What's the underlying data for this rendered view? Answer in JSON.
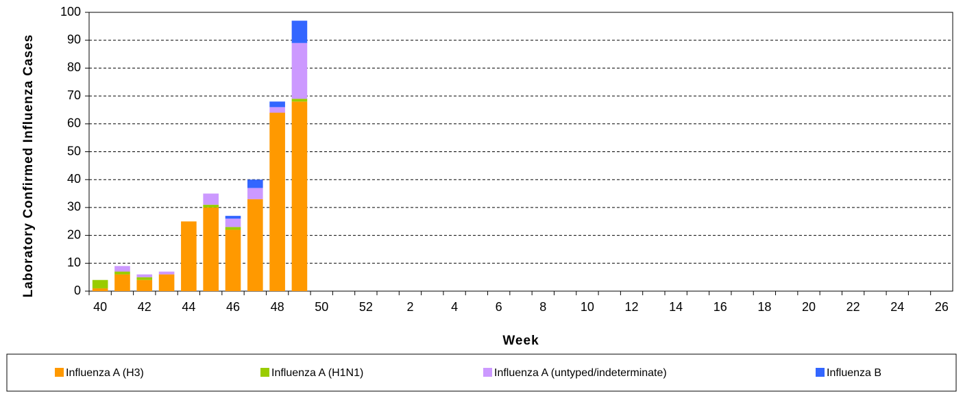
{
  "chart_data": {
    "type": "stacked_bar",
    "xlabel": "Week",
    "ylabel": "Laboratory Confirmed Influenza Cases",
    "categories": [
      "40",
      null,
      "42",
      null,
      "44",
      null,
      "46",
      null,
      "48",
      null,
      "50",
      null,
      "52",
      null,
      "2",
      null,
      "4",
      null,
      "6",
      null,
      "8",
      null,
      "10",
      null,
      "12",
      null,
      "14",
      null,
      "16",
      null,
      "18",
      null,
      "20",
      null,
      "22",
      null,
      "24",
      null,
      "26"
    ],
    "series": [
      {
        "name": "Influenza A (H3)",
        "color": "#ff9900",
        "values": [
          1,
          6,
          4,
          6,
          25,
          30,
          22,
          33,
          64,
          68,
          null,
          null,
          null,
          null,
          null,
          null,
          null,
          null,
          null,
          null,
          null,
          null,
          null,
          null,
          null,
          null,
          null,
          null,
          null,
          null,
          null,
          null,
          null,
          null,
          null,
          null,
          null,
          null,
          null
        ]
      },
      {
        "name": "Influenza A (H1N1)",
        "color": "#99cc00",
        "values": [
          3,
          1,
          1,
          0,
          0,
          1,
          1,
          0,
          0,
          1,
          null,
          null,
          null,
          null,
          null,
          null,
          null,
          null,
          null,
          null,
          null,
          null,
          null,
          null,
          null,
          null,
          null,
          null,
          null,
          null,
          null,
          null,
          null,
          null,
          null,
          null,
          null,
          null,
          null
        ]
      },
      {
        "name": "Influenza A (untyped/indeterminate)",
        "color": "#cc99ff",
        "values": [
          0,
          2,
          1,
          1,
          0,
          4,
          3,
          4,
          2,
          20,
          null,
          null,
          null,
          null,
          null,
          null,
          null,
          null,
          null,
          null,
          null,
          null,
          null,
          null,
          null,
          null,
          null,
          null,
          null,
          null,
          null,
          null,
          null,
          null,
          null,
          null,
          null,
          null,
          null
        ]
      },
      {
        "name": "Influenza B",
        "color": "#3366ff",
        "values": [
          0,
          0,
          0,
          0,
          0,
          0,
          1,
          3,
          2,
          8,
          null,
          null,
          null,
          null,
          null,
          null,
          null,
          null,
          null,
          null,
          null,
          null,
          null,
          null,
          null,
          null,
          null,
          null,
          null,
          null,
          null,
          null,
          null,
          null,
          null,
          null,
          null,
          null,
          null
        ]
      }
    ],
    "ylim": [
      0,
      100
    ],
    "yticks": [
      0,
      10,
      20,
      30,
      40,
      50,
      60,
      70,
      80,
      90,
      100
    ],
    "grid": true
  }
}
